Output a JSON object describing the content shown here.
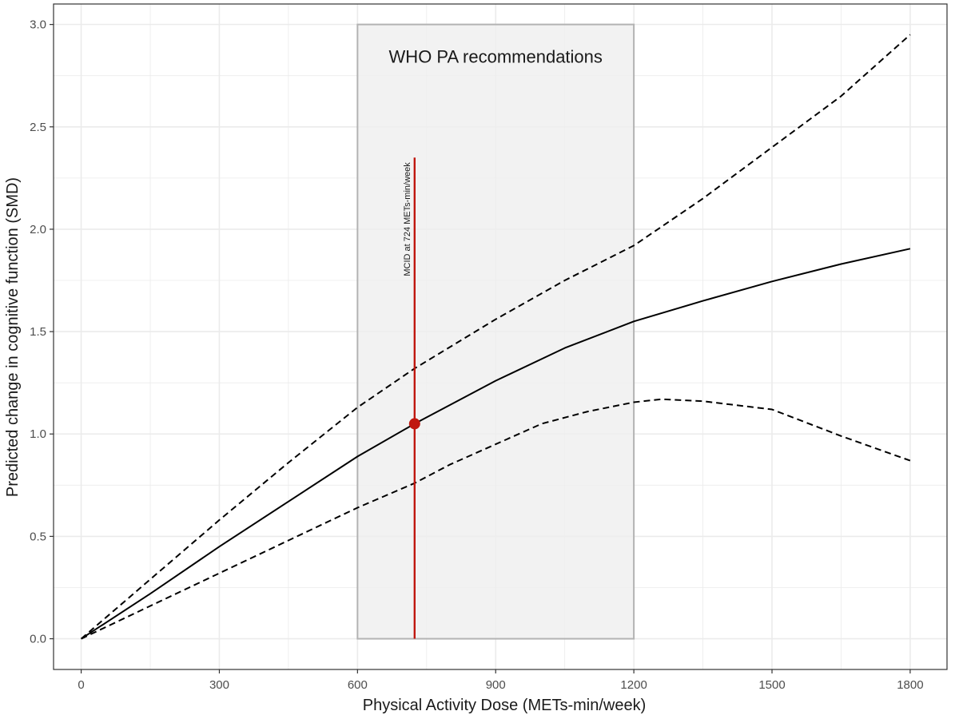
{
  "chart_data": {
    "type": "line",
    "title": "",
    "xlabel": "Physical Activity Dose (METs-min/week)",
    "ylabel": "Predicted change in cognitive function (SMD)",
    "xlim": [
      -60,
      1880
    ],
    "ylim": [
      -0.15,
      3.1
    ],
    "x_ticks": [
      0,
      300,
      600,
      900,
      1200,
      1500,
      1800
    ],
    "y_ticks": [
      0.0,
      0.5,
      1.0,
      1.5,
      2.0,
      2.5,
      3.0
    ],
    "x_tick_labels": [
      "0",
      "300",
      "600",
      "900",
      "1200",
      "1500",
      "1800"
    ],
    "y_tick_labels": [
      "0.0",
      "0.5",
      "1.0",
      "1.5",
      "2.0",
      "2.5",
      "3.0"
    ],
    "grid": true,
    "shaded_region": {
      "label": "WHO PA recommendations",
      "x": [
        600,
        1200
      ],
      "y": [
        0,
        3.0
      ],
      "color": "#efefef",
      "border_color": "#b3b3b3"
    },
    "marker": {
      "label": "MCID at 724 METs-min/week",
      "x": 724,
      "y": 1.05,
      "line_y": [
        0,
        2.35
      ],
      "color": "#c0170f"
    },
    "series": [
      {
        "style": "solid",
        "x": [
          0,
          150,
          300,
          450,
          600,
          724,
          900,
          1050,
          1200,
          1350,
          1500,
          1650,
          1800
        ],
        "y": [
          0,
          0.22,
          0.45,
          0.67,
          0.89,
          1.05,
          1.26,
          1.42,
          1.55,
          1.65,
          1.745,
          1.83,
          1.905
        ]
      },
      {
        "style": "dashed",
        "x": [
          0,
          150,
          300,
          450,
          600,
          724,
          900,
          1050,
          1200,
          1350,
          1500,
          1650,
          1800
        ],
        "y": [
          0,
          0.29,
          0.58,
          0.86,
          1.13,
          1.32,
          1.56,
          1.75,
          1.92,
          2.15,
          2.4,
          2.65,
          2.95
        ]
      },
      {
        "style": "dashed",
        "x": [
          0,
          150,
          300,
          450,
          600,
          724,
          800,
          900,
          1000,
          1100,
          1200,
          1260,
          1350,
          1500,
          1650,
          1800
        ],
        "y": [
          0,
          0.16,
          0.32,
          0.48,
          0.64,
          0.76,
          0.85,
          0.95,
          1.05,
          1.11,
          1.155,
          1.17,
          1.16,
          1.12,
          0.99,
          0.87
        ]
      }
    ],
    "colors": {
      "series": "#000000",
      "grid": "#ebebeb",
      "panel_border": "#333333"
    }
  }
}
